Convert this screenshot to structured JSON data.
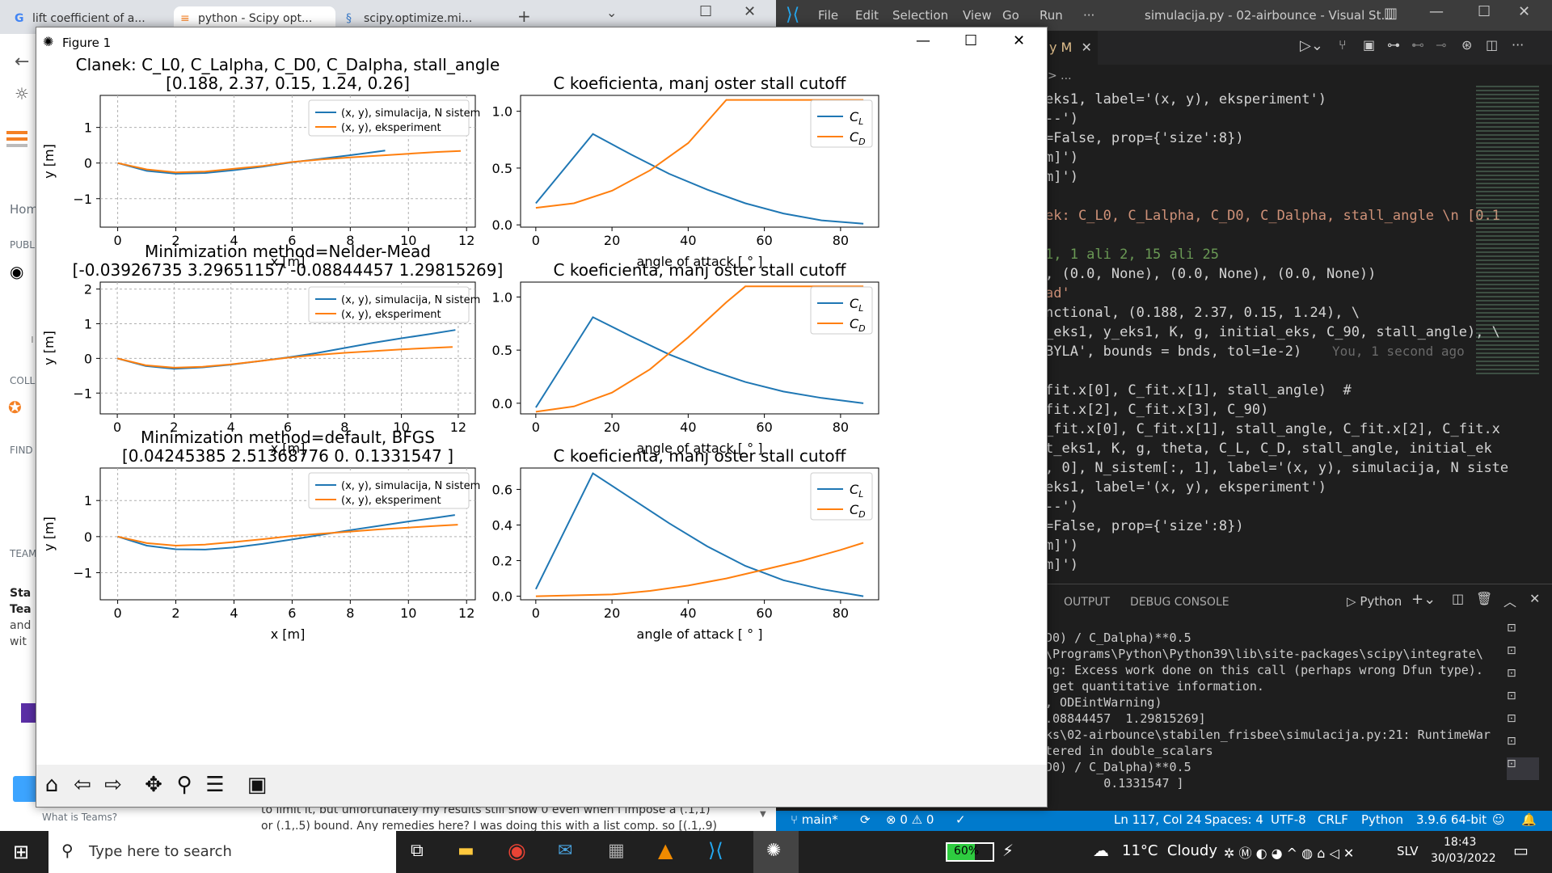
{
  "browser": {
    "tabs": [
      {
        "label": "lift coefficient of a..."
      },
      {
        "label": "python - Scipy opt..."
      },
      {
        "label": "scipy.optimize.mi..."
      }
    ],
    "sidebar": {
      "home": "Hom",
      "public": "PUBL",
      "collectives": "COLL",
      "find": "FIND",
      "teams": "TEAM",
      "teams_title_1": "Sta",
      "teams_title_2": "Tea",
      "teams_body_1": "and",
      "teams_body_2": "wit",
      "what_is_teams": "What is Teams?"
    },
    "post_text_1": "to limit it, but unfortunately my results still show 0 even when I impose a (.1,1)",
    "post_text_2": "or (.1,.5) bound. Any remedies here? I was doing this with a list comp. so [(.1,.9)"
  },
  "figure": {
    "window_title": "Figure 1",
    "toolbar": {
      "home": "home-icon",
      "back": "arrow-left-icon",
      "forward": "arrow-right-icon",
      "pan": "pan-icon",
      "zoom": "zoom-icon",
      "configure": "sliders-icon",
      "save": "save-icon"
    }
  },
  "chart_data": [
    {
      "type": "line",
      "title": "Članek: C_L0, C_Lalpha, C_D0, C_Dalpha, stall_angle",
      "subtitle": "[0.188, 2.37, 0.15, 1.24, 0.26]",
      "xlabel": "x [m]",
      "ylabel": "y [m]",
      "xlim": [
        -0.6,
        12.3
      ],
      "ylim": [
        -1.8,
        1.9
      ],
      "xticks": [
        0,
        2,
        4,
        6,
        8,
        10,
        12
      ],
      "yticks": [
        -1,
        0,
        1
      ],
      "grid": true,
      "legend": [
        "(x, y), simulacija, N sistem",
        "(x, y), eksperiment"
      ],
      "legend_position": "top-right",
      "series": [
        {
          "name": "(x, y), simulacija, N sistem",
          "color": "#1f77b4",
          "points": [
            [
              0,
              0
            ],
            [
              1,
              -0.22
            ],
            [
              2,
              -0.3
            ],
            [
              3,
              -0.28
            ],
            [
              4,
              -0.2
            ],
            [
              5,
              -0.1
            ],
            [
              6,
              0.02
            ],
            [
              7,
              0.12
            ],
            [
              8,
              0.22
            ],
            [
              9,
              0.33
            ],
            [
              9.2,
              0.35
            ]
          ]
        },
        {
          "name": "(x, y), eksperiment",
          "color": "#ff7f0e",
          "points": [
            [
              0,
              0
            ],
            [
              1,
              -0.18
            ],
            [
              2,
              -0.26
            ],
            [
              3,
              -0.24
            ],
            [
              4,
              -0.16
            ],
            [
              5,
              -0.08
            ],
            [
              6,
              0.03
            ],
            [
              7,
              0.1
            ],
            [
              8,
              0.16
            ],
            [
              9,
              0.21
            ],
            [
              10,
              0.26
            ],
            [
              11,
              0.31
            ],
            [
              11.8,
              0.34
            ]
          ]
        }
      ]
    },
    {
      "type": "line",
      "title": "C koeficienta, manj oster stall cutoff",
      "xlabel": "angle of attack [ ° ]",
      "xlim": [
        -4,
        90
      ],
      "ylim": [
        -0.02,
        1.14
      ],
      "xticks": [
        0,
        20,
        40,
        60,
        80
      ],
      "yticks": [
        0.0,
        0.5,
        1.0
      ],
      "ytick_labels": [
        "0.0",
        "0.5",
        "1.0"
      ],
      "grid": false,
      "legend": [
        "C_L",
        "C_D"
      ],
      "legend_position": "top-right",
      "series": [
        {
          "name": "C_L",
          "color": "#1f77b4",
          "points": [
            [
              0,
              0.19
            ],
            [
              15,
              0.8
            ],
            [
              25,
              0.62
            ],
            [
              35,
              0.45
            ],
            [
              45,
              0.31
            ],
            [
              55,
              0.19
            ],
            [
              65,
              0.1
            ],
            [
              75,
              0.04
            ],
            [
              86,
              0.01
            ]
          ]
        },
        {
          "name": "C_D",
          "color": "#ff7f0e",
          "points": [
            [
              0,
              0.15
            ],
            [
              10,
              0.19
            ],
            [
              20,
              0.3
            ],
            [
              30,
              0.48
            ],
            [
              40,
              0.72
            ],
            [
              50,
              1.1
            ],
            [
              86,
              1.1
            ]
          ]
        }
      ]
    },
    {
      "type": "line",
      "title": "Minimization method=Nelder-Mead",
      "subtitle": "[-0.03926735  3.29651157 -0.08844457  1.29815269]",
      "xlabel": "x [m]",
      "ylabel": "y [m]",
      "xlim": [
        -0.6,
        12.6
      ],
      "ylim": [
        -1.6,
        2.2
      ],
      "xticks": [
        0,
        2,
        4,
        6,
        8,
        10,
        12
      ],
      "yticks": [
        -1,
        0,
        1,
        2
      ],
      "grid": true,
      "legend": [
        "(x, y), simulacija, N sistem",
        "(x, y), eksperiment"
      ],
      "legend_position": "top-right",
      "series": [
        {
          "name": "(x, y), simulacija, N sistem",
          "color": "#1f77b4",
          "points": [
            [
              0,
              0
            ],
            [
              1,
              -0.22
            ],
            [
              2,
              -0.3
            ],
            [
              3,
              -0.26
            ],
            [
              4,
              -0.18
            ],
            [
              5,
              -0.08
            ],
            [
              6,
              0.03
            ],
            [
              7,
              0.15
            ],
            [
              8,
              0.3
            ],
            [
              9,
              0.45
            ],
            [
              10,
              0.58
            ],
            [
              11,
              0.7
            ],
            [
              11.9,
              0.82
            ]
          ]
        },
        {
          "name": "(x, y), eksperiment",
          "color": "#ff7f0e",
          "points": [
            [
              0,
              0
            ],
            [
              1,
              -0.2
            ],
            [
              2,
              -0.27
            ],
            [
              3,
              -0.24
            ],
            [
              4,
              -0.17
            ],
            [
              5,
              -0.08
            ],
            [
              6,
              0.02
            ],
            [
              7,
              0.1
            ],
            [
              8,
              0.16
            ],
            [
              9,
              0.21
            ],
            [
              10,
              0.26
            ],
            [
              11,
              0.3
            ],
            [
              11.8,
              0.33
            ]
          ]
        }
      ]
    },
    {
      "type": "line",
      "title": "C koeficienta, manj oster stall cutoff",
      "xlabel": "angle of attack [ ° ]",
      "xlim": [
        -4,
        90
      ],
      "ylim": [
        -0.1,
        1.14
      ],
      "xticks": [
        0,
        20,
        40,
        60,
        80
      ],
      "yticks": [
        0.0,
        0.5,
        1.0
      ],
      "ytick_labels": [
        "0.0",
        "0.5",
        "1.0"
      ],
      "grid": false,
      "legend": [
        "C_L",
        "C_D"
      ],
      "legend_position": "top-right",
      "series": [
        {
          "name": "C_L",
          "color": "#1f77b4",
          "points": [
            [
              0,
              -0.04
            ],
            [
              15,
              0.81
            ],
            [
              25,
              0.63
            ],
            [
              35,
              0.46
            ],
            [
              45,
              0.32
            ],
            [
              55,
              0.2
            ],
            [
              65,
              0.11
            ],
            [
              75,
              0.05
            ],
            [
              86,
              0.0
            ]
          ]
        },
        {
          "name": "C_D",
          "color": "#ff7f0e",
          "points": [
            [
              0,
              -0.08
            ],
            [
              10,
              -0.03
            ],
            [
              20,
              0.1
            ],
            [
              30,
              0.32
            ],
            [
              40,
              0.62
            ],
            [
              50,
              0.95
            ],
            [
              55,
              1.1
            ],
            [
              86,
              1.1
            ]
          ]
        }
      ]
    },
    {
      "type": "line",
      "title": "Minimization method=default, BFGS",
      "subtitle": "[0.04245385 2.51368776 0.         0.1331547 ]",
      "xlabel": "x [m]",
      "ylabel": "y [m]",
      "xlim": [
        -0.6,
        12.3
      ],
      "ylim": [
        -1.75,
        1.9
      ],
      "xticks": [
        0,
        2,
        4,
        6,
        8,
        10,
        12
      ],
      "yticks": [
        -1,
        0,
        1
      ],
      "grid": true,
      "legend": [
        "(x, y), simulacija, N sistem",
        "(x, y), eksperiment"
      ],
      "legend_position": "top-right",
      "series": [
        {
          "name": "(x, y), simulacija, N sistem",
          "color": "#1f77b4",
          "points": [
            [
              0,
              0
            ],
            [
              1,
              -0.25
            ],
            [
              2,
              -0.35
            ],
            [
              3,
              -0.36
            ],
            [
              4,
              -0.3
            ],
            [
              5,
              -0.2
            ],
            [
              6,
              -0.08
            ],
            [
              7,
              0.05
            ],
            [
              8,
              0.18
            ],
            [
              9,
              0.3
            ],
            [
              10,
              0.42
            ],
            [
              11,
              0.53
            ],
            [
              11.6,
              0.6
            ]
          ]
        },
        {
          "name": "(x, y), eksperiment",
          "color": "#ff7f0e",
          "points": [
            [
              0,
              0
            ],
            [
              1,
              -0.18
            ],
            [
              2,
              -0.25
            ],
            [
              3,
              -0.22
            ],
            [
              4,
              -0.15
            ],
            [
              5,
              -0.07
            ],
            [
              6,
              0.02
            ],
            [
              7,
              0.08
            ],
            [
              8,
              0.14
            ],
            [
              9,
              0.2
            ],
            [
              10,
              0.25
            ],
            [
              11,
              0.3
            ],
            [
              11.7,
              0.33
            ]
          ]
        }
      ]
    },
    {
      "type": "line",
      "title": "C koeficienta, manj oster stall cutoff",
      "xlabel": "angle of attack [ ° ]",
      "xlim": [
        -4,
        90
      ],
      "ylim": [
        -0.02,
        0.72
      ],
      "xticks": [
        0,
        20,
        40,
        60,
        80
      ],
      "yticks": [
        0.0,
        0.2,
        0.4,
        0.6
      ],
      "ytick_labels": [
        "0.0",
        "0.2",
        "0.4",
        "0.6"
      ],
      "grid": false,
      "legend": [
        "C_L",
        "C_D"
      ],
      "legend_position": "top-right",
      "series": [
        {
          "name": "C_L",
          "color": "#1f77b4",
          "points": [
            [
              0,
              0.04
            ],
            [
              15,
              0.69
            ],
            [
              25,
              0.55
            ],
            [
              35,
              0.41
            ],
            [
              45,
              0.28
            ],
            [
              55,
              0.17
            ],
            [
              65,
              0.09
            ],
            [
              75,
              0.04
            ],
            [
              86,
              0.0
            ]
          ]
        },
        {
          "name": "C_D",
          "color": "#ff7f0e",
          "points": [
            [
              0,
              0.0
            ],
            [
              20,
              0.01
            ],
            [
              30,
              0.03
            ],
            [
              40,
              0.06
            ],
            [
              50,
              0.1
            ],
            [
              60,
              0.15
            ],
            [
              70,
              0.2
            ],
            [
              80,
              0.26
            ],
            [
              86,
              0.3
            ]
          ]
        }
      ]
    }
  ],
  "vscode": {
    "menu": [
      "File",
      "Edit",
      "Selection",
      "View",
      "Go",
      "Run",
      "···"
    ],
    "window_title": "simulacija.py - 02-airbounce - Visual St...",
    "tab_partial": "y M",
    "breadcrumb": "> ...",
    "code": [
      [
        "eks1, label='(x, y), eksperiment')"
      ],
      [
        "--')"
      ],
      [
        "=False, prop={'size':8})"
      ],
      [
        "m]')"
      ],
      [
        "m]')"
      ],
      [
        ""
      ],
      [
        "ek: C_L0, C_Lalpha, C_D0, C_Dalpha, stall_angle \\n [0.1"
      ],
      [
        ""
      ],
      [
        "1, 1 ali 2, 15 ali 25"
      ],
      [
        ", (0.0, None), (0.0, None), (0.0, None))"
      ],
      [
        "ad'"
      ],
      [
        "nctional, (0.188, 2.37, 0.15, 1.24), \\"
      ],
      [
        "_eks1, y_eks1, K, g, initial_eks, C_90, stall_angle), \\"
      ],
      [
        "BYLA', bounds = bnds, tol=1e-2)"
      ],
      [
        ""
      ],
      [
        "fit.x[0], C_fit.x[1], stall_angle)  #"
      ],
      [
        "fit.x[2], C_fit.x[3], C_90)"
      ],
      [
        "_fit.x[0], C_fit.x[1], stall_angle, C_fit.x[2], C_fit.x"
      ],
      [
        "t_eks1, K, g, theta, C_L, C_D, stall_angle, initial_ek"
      ],
      [
        ", 0], N_sistem[:, 1], label='(x, y), simulacija, N siste"
      ],
      [
        "eks1, label='(x, y), eksperiment')"
      ],
      [
        "--')"
      ],
      [
        "=False, prop={'size':8})"
      ],
      [
        "m]')"
      ],
      [
        "m]')"
      ]
    ],
    "blame": "You, 1 second ago",
    "panel_tabs": [
      "OUTPUT",
      "DEBUG CONSOLE"
    ],
    "terminal_name": "Python",
    "terminal": [
      "D0) / C_Dalpha)**0.5",
      "\\Programs\\Python\\Python39\\lib\\site-packages\\scipy\\integrate\\",
      "ng: Excess work done on this call (perhaps wrong Dfun type).",
      " get quantitative information.",
      ", ODEintWarning)",
      ".08844457  1.29815269]",
      "ks\\02-airbounce\\stabilen_frisbee\\simulacija.py:21: RuntimeWar",
      "tered in double_scalars",
      "D0) / C_Dalpha)**0.5",
      "        0.1331547 ]"
    ],
    "status": {
      "branch": "main*",
      "errors": "0",
      "warnings": "0",
      "position": "Ln 117, Col 24",
      "spaces": "Spaces: 4",
      "encoding": "UTF-8",
      "eol": "CRLF",
      "language": "Python",
      "interpreter": "3.9.6 64-bit"
    }
  },
  "taskbar": {
    "search_placeholder": "Type here to search",
    "battery": "60%",
    "weather": "11°C  Cloudy",
    "language": "SLV",
    "time": "18:43",
    "date": "30/03/2022"
  }
}
